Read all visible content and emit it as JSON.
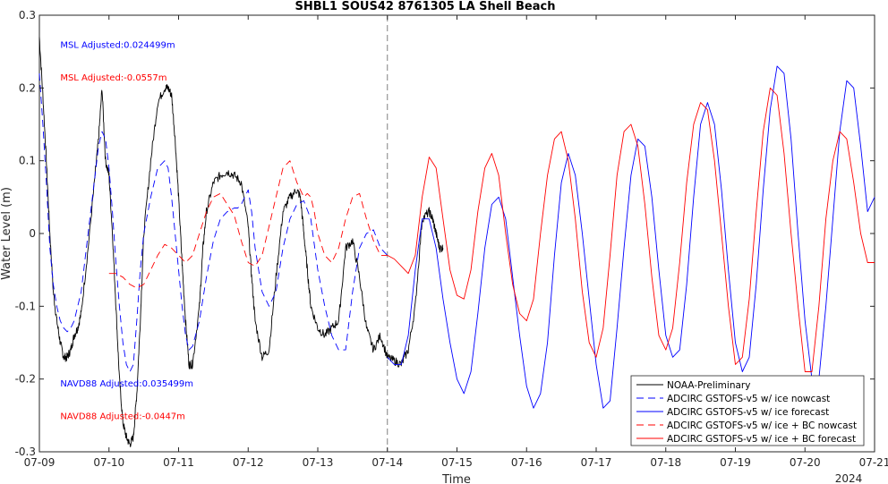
{
  "chart_data": {
    "type": "line",
    "title": "SHBL1 SOUS42 8761305 LA Shell Beach",
    "xlabel": "Time",
    "ylabel": "Water Level (m)",
    "xlim": [
      0,
      12
    ],
    "ylim": [
      -0.3,
      0.3
    ],
    "x_tick_labels": [
      "07-09",
      "07-10",
      "07-11",
      "07-12",
      "07-13",
      "07-14",
      "07-15",
      "07-16",
      "07-17",
      "07-18",
      "07-19",
      "07-20",
      "07-21"
    ],
    "x_tick_values": [
      0,
      1,
      2,
      3,
      4,
      5,
      6,
      7,
      8,
      9,
      10,
      11,
      12
    ],
    "x_axis_year": "2024",
    "y_ticks": [
      -0.3,
      -0.2,
      -0.1,
      0,
      0.1,
      0.2,
      0.3
    ],
    "y_tick_labels": [
      "-0.3",
      "-0.2",
      "-0.1",
      "0",
      "0.1",
      "0.2",
      "0.3"
    ],
    "nowcast_forecast_divider_x": 5.0,
    "grid": false,
    "legend_placement": "bottom-right",
    "annotations": [
      {
        "text": "MSL Adjusted:0.024499m",
        "color": "#0000ff",
        "x": 0.3,
        "y": 0.255
      },
      {
        "text": "MSL Adjusted:-0.0557m",
        "color": "#ff0000",
        "x": 0.3,
        "y": 0.21
      },
      {
        "text": "NAVD88 Adjusted:0.035499m",
        "color": "#0000ff",
        "x": 0.3,
        "y": -0.21
      },
      {
        "text": "NAVD88 Adjusted:-0.0447m",
        "color": "#ff0000",
        "x": 0.3,
        "y": -0.255
      }
    ],
    "series": [
      {
        "name": "NOAA-Preliminary",
        "color": "#000000",
        "style": "solid",
        "noise": 0.006,
        "x": [
          0,
          0.05,
          0.1,
          0.15,
          0.2,
          0.25,
          0.3,
          0.35,
          0.4,
          0.45,
          0.5,
          0.55,
          0.6,
          0.7,
          0.8,
          0.85,
          0.9,
          0.95,
          1.0,
          1.05,
          1.1,
          1.15,
          1.2,
          1.25,
          1.3,
          1.35,
          1.4,
          1.45,
          1.5,
          1.6,
          1.7,
          1.8,
          1.85,
          1.9,
          1.95,
          2.0,
          2.05,
          2.1,
          2.15,
          2.2,
          2.3,
          2.35,
          2.4,
          2.5,
          2.6,
          2.7,
          2.8,
          2.9,
          3.0,
          3.05,
          3.1,
          3.2,
          3.3,
          3.4,
          3.5,
          3.6,
          3.7,
          3.75,
          3.8,
          3.85,
          3.9,
          4.0,
          4.1,
          4.2,
          4.3,
          4.4,
          4.5,
          4.6,
          4.7,
          4.8,
          4.9,
          5.0,
          5.1,
          5.2,
          5.3,
          5.4,
          5.5,
          5.6,
          5.65,
          5.7,
          5.75,
          5.8
        ],
        "y": [
          0.27,
          0.19,
          0.1,
          0.0,
          -0.08,
          -0.12,
          -0.15,
          -0.17,
          -0.17,
          -0.16,
          -0.14,
          -0.13,
          -0.11,
          -0.02,
          0.08,
          0.13,
          0.2,
          0.1,
          0.08,
          0.0,
          -0.1,
          -0.2,
          -0.26,
          -0.28,
          -0.29,
          -0.28,
          -0.22,
          -0.12,
          0.0,
          0.1,
          0.18,
          0.2,
          0.2,
          0.19,
          0.13,
          0.05,
          -0.04,
          -0.12,
          -0.18,
          -0.18,
          -0.1,
          -0.02,
          0.03,
          0.07,
          0.08,
          0.085,
          0.08,
          0.07,
          0.01,
          -0.06,
          -0.12,
          -0.17,
          -0.16,
          -0.06,
          0.03,
          0.05,
          0.06,
          0.05,
          0.0,
          -0.05,
          -0.1,
          -0.13,
          -0.14,
          -0.13,
          -0.12,
          -0.02,
          -0.01,
          -0.06,
          -0.13,
          -0.16,
          -0.14,
          -0.17,
          -0.175,
          -0.18,
          -0.16,
          -0.1,
          0.02,
          0.03,
          0.02,
          0.0,
          -0.02,
          -0.02
        ]
      },
      {
        "name": "ADCIRC GSTOFS-v5 w/ ice nowcast",
        "color": "#0000ff",
        "style": "dashed",
        "x": [
          0,
          0.05,
          0.1,
          0.15,
          0.2,
          0.25,
          0.3,
          0.35,
          0.4,
          0.45,
          0.5,
          0.6,
          0.7,
          0.8,
          0.85,
          0.9,
          0.95,
          1.0,
          1.05,
          1.1,
          1.15,
          1.2,
          1.25,
          1.3,
          1.35,
          1.4,
          1.45,
          1.5,
          1.6,
          1.7,
          1.8,
          1.85,
          1.9,
          1.95,
          2.0,
          2.05,
          2.1,
          2.15,
          2.2,
          2.3,
          2.4,
          2.5,
          2.6,
          2.7,
          2.8,
          2.85,
          2.9,
          2.95,
          3.0,
          3.05,
          3.1,
          3.2,
          3.3,
          3.4,
          3.5,
          3.6,
          3.7,
          3.8,
          3.9,
          4.0,
          4.1,
          4.2,
          4.3,
          4.4,
          4.5,
          4.6,
          4.7,
          4.8,
          4.9,
          5.0
        ],
        "y": [
          0.22,
          0.15,
          0.07,
          -0.02,
          -0.07,
          -0.1,
          -0.12,
          -0.13,
          -0.135,
          -0.13,
          -0.12,
          -0.08,
          0.0,
          0.08,
          0.12,
          0.14,
          0.13,
          0.09,
          0.03,
          -0.04,
          -0.1,
          -0.15,
          -0.18,
          -0.19,
          -0.18,
          -0.12,
          -0.05,
          0.0,
          0.05,
          0.09,
          0.1,
          0.09,
          0.05,
          0.0,
          -0.05,
          -0.1,
          -0.14,
          -0.16,
          -0.155,
          -0.12,
          -0.06,
          -0.01,
          0.02,
          0.03,
          0.035,
          0.035,
          0.04,
          0.05,
          0.06,
          0.03,
          -0.02,
          -0.08,
          -0.1,
          -0.08,
          -0.02,
          0.02,
          0.04,
          0.045,
          0.02,
          -0.05,
          -0.1,
          -0.14,
          -0.16,
          -0.16,
          -0.08,
          -0.02,
          0.0,
          0.005,
          -0.02,
          -0.03
        ]
      },
      {
        "name": "ADCIRC GSTOFS-v5 w/ ice forecast",
        "color": "#0000ff",
        "style": "solid",
        "x": [
          5.0,
          5.1,
          5.2,
          5.3,
          5.4,
          5.5,
          5.6,
          5.7,
          5.8,
          5.9,
          6.0,
          6.1,
          6.2,
          6.3,
          6.4,
          6.5,
          6.6,
          6.7,
          6.8,
          6.9,
          7.0,
          7.1,
          7.2,
          7.3,
          7.4,
          7.5,
          7.6,
          7.7,
          7.8,
          7.9,
          8.0,
          8.1,
          8.2,
          8.3,
          8.4,
          8.5,
          8.6,
          8.7,
          8.8,
          8.9,
          9.0,
          9.1,
          9.2,
          9.3,
          9.4,
          9.5,
          9.6,
          9.7,
          9.8,
          9.9,
          10.0,
          10.1,
          10.2,
          10.3,
          10.4,
          10.5,
          10.6,
          10.7,
          10.8,
          10.9,
          11.0,
          11.1,
          11.2,
          11.3,
          11.4,
          11.5,
          11.6,
          11.7,
          11.8,
          11.9,
          12.0
        ],
        "y": [
          -0.17,
          -0.18,
          -0.18,
          -0.14,
          -0.05,
          0.02,
          0.02,
          -0.02,
          -0.09,
          -0.15,
          -0.2,
          -0.22,
          -0.19,
          -0.11,
          -0.02,
          0.04,
          0.05,
          0.02,
          -0.06,
          -0.14,
          -0.21,
          -0.24,
          -0.22,
          -0.15,
          -0.03,
          0.07,
          0.11,
          0.08,
          0.0,
          -0.09,
          -0.18,
          -0.24,
          -0.23,
          -0.13,
          -0.02,
          0.08,
          0.13,
          0.12,
          0.05,
          -0.05,
          -0.14,
          -0.17,
          -0.16,
          -0.07,
          0.05,
          0.15,
          0.18,
          0.15,
          0.06,
          -0.05,
          -0.15,
          -0.19,
          -0.17,
          -0.07,
          0.06,
          0.17,
          0.23,
          0.22,
          0.13,
          0.0,
          -0.12,
          -0.2,
          -0.2,
          -0.1,
          0.02,
          0.14,
          0.21,
          0.2,
          0.12,
          0.03,
          0.05
        ]
      },
      {
        "name": "ADCIRC GSTOFS-v5 w/ ice + BC nowcast",
        "color": "#ff0000",
        "style": "dashed",
        "x": [
          1.0,
          1.1,
          1.2,
          1.3,
          1.4,
          1.5,
          1.6,
          1.7,
          1.8,
          1.9,
          2.0,
          2.1,
          2.2,
          2.3,
          2.4,
          2.5,
          2.6,
          2.7,
          2.8,
          2.9,
          3.0,
          3.1,
          3.2,
          3.3,
          3.4,
          3.5,
          3.6,
          3.7,
          3.8,
          3.85,
          3.9,
          3.95,
          4.0,
          4.1,
          4.2,
          4.3,
          4.4,
          4.5,
          4.6,
          4.7,
          4.8,
          4.9,
          5.0
        ],
        "y": [
          -0.055,
          -0.055,
          -0.06,
          -0.07,
          -0.075,
          -0.07,
          -0.05,
          -0.03,
          -0.015,
          -0.02,
          -0.03,
          -0.04,
          -0.03,
          0.0,
          0.03,
          0.05,
          0.055,
          0.04,
          0.025,
          -0.01,
          -0.04,
          -0.045,
          -0.03,
          0.01,
          0.05,
          0.09,
          0.1,
          0.07,
          0.05,
          0.055,
          0.05,
          0.03,
          0.0,
          -0.03,
          -0.04,
          -0.02,
          0.02,
          0.05,
          0.055,
          0.02,
          -0.01,
          -0.03,
          -0.03
        ]
      },
      {
        "name": "ADCIRC GSTOFS-v5 w/ ice + BC forecast",
        "color": "#ff0000",
        "style": "solid",
        "x": [
          5.0,
          5.1,
          5.2,
          5.3,
          5.4,
          5.5,
          5.6,
          5.7,
          5.8,
          5.9,
          6.0,
          6.1,
          6.2,
          6.3,
          6.4,
          6.5,
          6.6,
          6.7,
          6.8,
          6.9,
          7.0,
          7.1,
          7.2,
          7.3,
          7.4,
          7.5,
          7.6,
          7.7,
          7.8,
          7.9,
          8.0,
          8.1,
          8.2,
          8.3,
          8.4,
          8.5,
          8.6,
          8.7,
          8.8,
          8.9,
          9.0,
          9.1,
          9.2,
          9.3,
          9.4,
          9.5,
          9.6,
          9.7,
          9.8,
          9.9,
          10.0,
          10.1,
          10.2,
          10.3,
          10.4,
          10.5,
          10.6,
          10.7,
          10.8,
          10.9,
          11.0,
          11.1,
          11.2,
          11.3,
          11.4,
          11.5,
          11.6,
          11.7,
          11.8,
          11.9,
          12.0
        ],
        "y": [
          -0.03,
          -0.035,
          -0.045,
          -0.055,
          -0.03,
          0.05,
          0.105,
          0.09,
          0.02,
          -0.05,
          -0.085,
          -0.09,
          -0.05,
          0.03,
          0.09,
          0.11,
          0.08,
          0.0,
          -0.07,
          -0.11,
          -0.12,
          -0.09,
          0.0,
          0.08,
          0.13,
          0.14,
          0.1,
          0.02,
          -0.08,
          -0.15,
          -0.17,
          -0.13,
          -0.03,
          0.08,
          0.14,
          0.15,
          0.12,
          0.04,
          -0.06,
          -0.14,
          -0.16,
          -0.13,
          -0.04,
          0.07,
          0.15,
          0.18,
          0.17,
          0.1,
          0.0,
          -0.1,
          -0.18,
          -0.17,
          -0.09,
          0.03,
          0.14,
          0.2,
          0.19,
          0.11,
          0.0,
          -0.1,
          -0.19,
          -0.19,
          -0.1,
          0.02,
          0.1,
          0.14,
          0.13,
          0.07,
          0.0,
          -0.04,
          -0.04
        ]
      }
    ]
  }
}
